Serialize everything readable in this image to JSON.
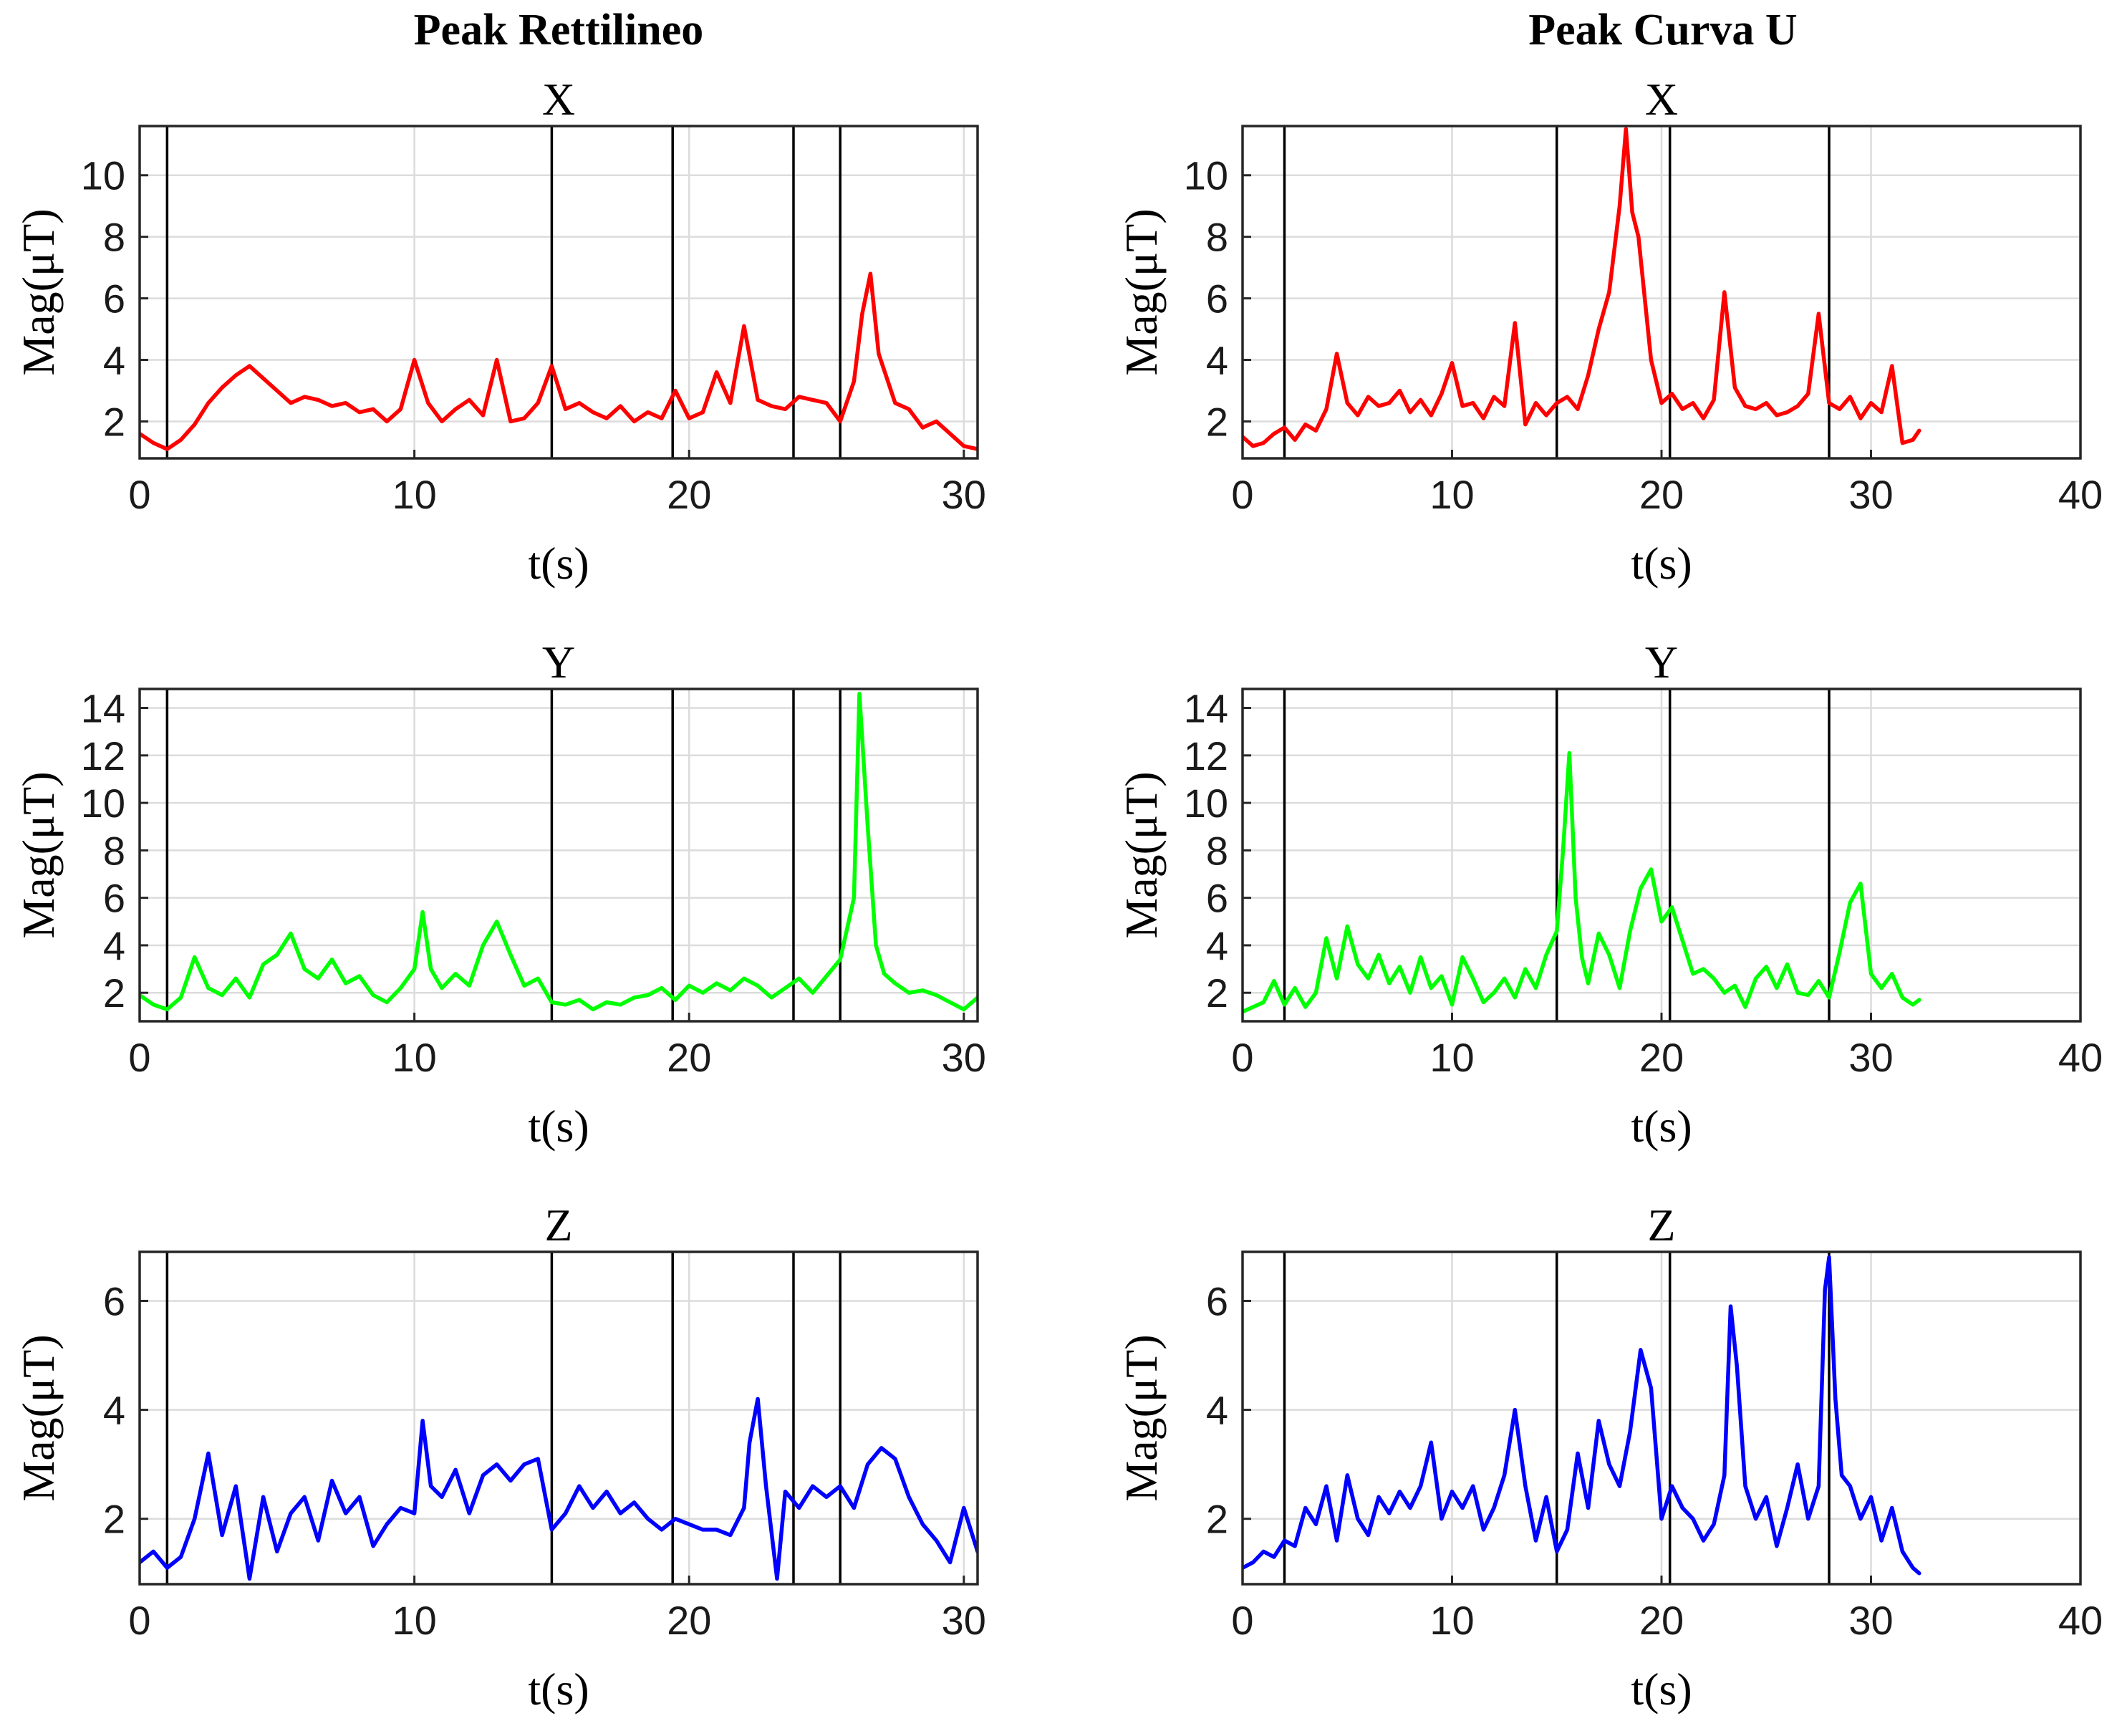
{
  "figure": {
    "column_titles": [
      "Peak Rettilineo",
      "Peak Curva U"
    ]
  },
  "chart_data": [
    {
      "id": "left-x",
      "type": "line",
      "column_title": "Peak Rettilineo",
      "title": "X",
      "xlabel": "t(s)",
      "ylabel": "Mag(μT)",
      "xlim": [
        0,
        30.5
      ],
      "ylim": [
        0.8,
        11.6
      ],
      "xticks": [
        0,
        10,
        20,
        30
      ],
      "yticks": [
        2,
        4,
        6,
        8,
        10
      ],
      "grid": true,
      "color": "#ff0000",
      "event_lines": [
        1,
        15,
        19.4,
        23.8,
        25.5
      ],
      "series": [
        {
          "x": [
            0,
            0.5,
            1,
            1.5,
            2,
            2.5,
            3,
            3.5,
            4,
            4.5,
            5,
            5.5,
            6,
            6.5,
            7,
            7.5,
            8,
            8.5,
            9,
            9.5,
            10,
            10.5,
            11,
            11.5,
            12,
            12.5,
            13,
            13.5,
            14,
            14.5,
            15,
            15.5,
            16,
            16.5,
            17,
            17.5,
            18,
            18.5,
            19,
            19.5,
            20,
            20.5,
            21,
            21.5,
            22,
            22.5,
            23,
            23.5,
            24,
            24.5,
            25,
            25.5,
            26,
            26.3,
            26.6,
            26.9,
            27.2,
            27.5,
            28,
            28.5,
            29,
            29.5,
            30,
            30.5
          ],
          "y": [
            1.6,
            1.3,
            1.1,
            1.4,
            1.9,
            2.6,
            3.1,
            3.5,
            3.8,
            3.4,
            3.0,
            2.6,
            2.8,
            2.7,
            2.5,
            2.6,
            2.3,
            2.4,
            2.0,
            2.4,
            4.0,
            2.6,
            2.0,
            2.4,
            2.7,
            2.2,
            4.0,
            2.0,
            2.1,
            2.6,
            3.8,
            2.4,
            2.6,
            2.3,
            2.1,
            2.5,
            2.0,
            2.3,
            2.1,
            3.0,
            2.1,
            2.3,
            3.6,
            2.6,
            5.1,
            2.7,
            2.5,
            2.4,
            2.8,
            2.7,
            2.6,
            2.0,
            3.3,
            5.5,
            6.8,
            4.2,
            3.4,
            2.6,
            2.4,
            1.8,
            2.0,
            1.6,
            1.2,
            1.1
          ]
        }
      ]
    },
    {
      "id": "right-x",
      "type": "line",
      "column_title": "Peak Curva U",
      "title": "X",
      "xlabel": "t(s)",
      "ylabel": "Mag(μT)",
      "xlim": [
        0,
        40
      ],
      "ylim": [
        0.8,
        11.6
      ],
      "xticks": [
        0,
        10,
        20,
        30,
        40
      ],
      "yticks": [
        2,
        4,
        6,
        8,
        10
      ],
      "grid": true,
      "color": "#ff0000",
      "event_lines": [
        2,
        15,
        20.4,
        28
      ],
      "series": [
        {
          "x": [
            0,
            0.5,
            1,
            1.5,
            2,
            2.5,
            3,
            3.5,
            4,
            4.5,
            5,
            5.5,
            6,
            6.5,
            7,
            7.5,
            8,
            8.5,
            9,
            9.5,
            10,
            10.5,
            11,
            11.5,
            12,
            12.5,
            13,
            13.5,
            14,
            14.5,
            15,
            15.5,
            16,
            16.5,
            17,
            17.5,
            18,
            18.3,
            18.6,
            18.9,
            19.2,
            19.5,
            20,
            20.5,
            21,
            21.5,
            22,
            22.5,
            23,
            23.5,
            24,
            24.5,
            25,
            25.5,
            26,
            26.5,
            27,
            27.5,
            28,
            28.5,
            29,
            29.5,
            30,
            30.5,
            31,
            31.5,
            32,
            32.3
          ],
          "y": [
            1.5,
            1.2,
            1.3,
            1.6,
            1.8,
            1.4,
            1.9,
            1.7,
            2.4,
            4.2,
            2.6,
            2.2,
            2.8,
            2.5,
            2.6,
            3.0,
            2.3,
            2.7,
            2.2,
            2.9,
            3.9,
            2.5,
            2.6,
            2.1,
            2.8,
            2.5,
            5.2,
            1.9,
            2.6,
            2.2,
            2.6,
            2.8,
            2.4,
            3.5,
            5.0,
            6.2,
            9.0,
            11.5,
            8.8,
            8.0,
            6.0,
            4.0,
            2.6,
            2.9,
            2.4,
            2.6,
            2.1,
            2.7,
            6.2,
            3.1,
            2.5,
            2.4,
            2.6,
            2.2,
            2.3,
            2.5,
            2.9,
            5.5,
            2.6,
            2.4,
            2.8,
            2.1,
            2.6,
            2.3,
            3.8,
            1.3,
            1.4,
            1.7
          ]
        }
      ]
    },
    {
      "id": "left-y",
      "type": "line",
      "column_title": "Peak Rettilineo",
      "title": "Y",
      "xlabel": "t(s)",
      "ylabel": "Mag(μT)",
      "xlim": [
        0,
        30.5
      ],
      "ylim": [
        0.8,
        14.8
      ],
      "xticks": [
        0,
        10,
        20,
        30
      ],
      "yticks": [
        2,
        4,
        6,
        8,
        10,
        12,
        14
      ],
      "grid": true,
      "color": "#00ff00",
      "event_lines": [
        1,
        15,
        19.4,
        23.8,
        25.5
      ],
      "series": [
        {
          "x": [
            0,
            0.5,
            1,
            1.5,
            2,
            2.5,
            3,
            3.5,
            4,
            4.5,
            5,
            5.5,
            6,
            6.5,
            7,
            7.5,
            8,
            8.5,
            9,
            9.5,
            10,
            10.3,
            10.6,
            11,
            11.5,
            12,
            12.5,
            13,
            13.5,
            14,
            14.5,
            15,
            15.5,
            16,
            16.5,
            17,
            17.5,
            18,
            18.5,
            19,
            19.5,
            20,
            20.5,
            21,
            21.5,
            22,
            22.5,
            23,
            23.5,
            24,
            24.5,
            25,
            25.5,
            26,
            26.2,
            26.5,
            26.8,
            27.1,
            27.5,
            28,
            28.5,
            29,
            29.5,
            30,
            30.5
          ],
          "y": [
            1.9,
            1.5,
            1.3,
            1.8,
            3.5,
            2.2,
            1.9,
            2.6,
            1.8,
            3.2,
            3.6,
            4.5,
            3.0,
            2.6,
            3.4,
            2.4,
            2.7,
            1.9,
            1.6,
            2.2,
            3.0,
            5.4,
            3.0,
            2.2,
            2.8,
            2.3,
            4.0,
            5.0,
            3.6,
            2.3,
            2.6,
            1.6,
            1.5,
            1.7,
            1.3,
            1.6,
            1.5,
            1.8,
            1.9,
            2.2,
            1.7,
            2.3,
            2.0,
            2.4,
            2.1,
            2.6,
            2.3,
            1.8,
            2.2,
            2.6,
            2.0,
            2.7,
            3.4,
            6.0,
            14.6,
            9.0,
            4.0,
            2.8,
            2.4,
            2.0,
            2.1,
            1.9,
            1.6,
            1.3,
            1.8
          ]
        }
      ]
    },
    {
      "id": "right-y",
      "type": "line",
      "column_title": "Peak Curva U",
      "title": "Y",
      "xlabel": "t(s)",
      "ylabel": "Mag(μT)",
      "xlim": [
        0,
        40
      ],
      "ylim": [
        0.8,
        14.8
      ],
      "xticks": [
        0,
        10,
        20,
        30,
        40
      ],
      "yticks": [
        2,
        4,
        6,
        8,
        10,
        12,
        14
      ],
      "grid": true,
      "color": "#00ff00",
      "event_lines": [
        2,
        15,
        20.4,
        28
      ],
      "series": [
        {
          "x": [
            0,
            0.5,
            1,
            1.5,
            2,
            2.5,
            3,
            3.5,
            4,
            4.5,
            5,
            5.5,
            6,
            6.5,
            7,
            7.5,
            8,
            8.5,
            9,
            9.5,
            10,
            10.5,
            11,
            11.5,
            12,
            12.5,
            13,
            13.5,
            14,
            14.5,
            15,
            15.3,
            15.6,
            15.9,
            16.2,
            16.5,
            17,
            17.5,
            18,
            18.5,
            19,
            19.5,
            20,
            20.5,
            21,
            21.5,
            22,
            22.5,
            23,
            23.5,
            24,
            24.5,
            25,
            25.5,
            26,
            26.5,
            27,
            27.5,
            28,
            28.5,
            29,
            29.5,
            30,
            30.5,
            31,
            31.5,
            32,
            32.3
          ],
          "y": [
            1.2,
            1.4,
            1.6,
            2.5,
            1.5,
            2.2,
            1.4,
            2.0,
            4.3,
            2.6,
            4.8,
            3.2,
            2.6,
            3.6,
            2.4,
            3.1,
            2.0,
            3.5,
            2.2,
            2.7,
            1.5,
            3.5,
            2.6,
            1.6,
            2.0,
            2.6,
            1.8,
            3.0,
            2.2,
            3.6,
            4.6,
            8.0,
            12.1,
            6.0,
            3.5,
            2.4,
            4.5,
            3.6,
            2.2,
            4.6,
            6.4,
            7.2,
            5.0,
            5.6,
            4.2,
            2.8,
            3.0,
            2.6,
            2.0,
            2.3,
            1.4,
            2.6,
            3.1,
            2.2,
            3.2,
            2.0,
            1.9,
            2.5,
            1.8,
            3.7,
            5.8,
            6.6,
            2.8,
            2.2,
            2.8,
            1.8,
            1.5,
            1.7
          ]
        }
      ]
    },
    {
      "id": "left-z",
      "type": "line",
      "column_title": "Peak Rettilineo",
      "title": "Z",
      "xlabel": "t(s)",
      "ylabel": "Mag(μT)",
      "xlim": [
        0,
        30.5
      ],
      "ylim": [
        0.8,
        6.9
      ],
      "xticks": [
        0,
        10,
        20,
        30
      ],
      "yticks": [
        2,
        4,
        6
      ],
      "grid": true,
      "color": "#0000ff",
      "event_lines": [
        1,
        15,
        19.4,
        23.8,
        25.5
      ],
      "series": [
        {
          "x": [
            0,
            0.5,
            1,
            1.5,
            2,
            2.5,
            3,
            3.5,
            4,
            4.5,
            5,
            5.5,
            6,
            6.5,
            7,
            7.5,
            8,
            8.5,
            9,
            9.5,
            10,
            10.3,
            10.6,
            11,
            11.5,
            12,
            12.5,
            13,
            13.5,
            14,
            14.5,
            15,
            15.5,
            16,
            16.5,
            17,
            17.5,
            18,
            18.5,
            19,
            19.5,
            20,
            20.5,
            21,
            21.5,
            22,
            22.2,
            22.5,
            22.8,
            23.2,
            23.5,
            24,
            24.5,
            25,
            25.5,
            26,
            26.5,
            27,
            27.5,
            28,
            28.5,
            29,
            29.5,
            30,
            30.5
          ],
          "y": [
            1.2,
            1.4,
            1.1,
            1.3,
            2.0,
            3.2,
            1.7,
            2.6,
            0.9,
            2.4,
            1.4,
            2.1,
            2.4,
            1.6,
            2.7,
            2.1,
            2.4,
            1.5,
            1.9,
            2.2,
            2.1,
            3.8,
            2.6,
            2.4,
            2.9,
            2.1,
            2.8,
            3.0,
            2.7,
            3.0,
            3.1,
            1.8,
            2.1,
            2.6,
            2.2,
            2.5,
            2.1,
            2.3,
            2.0,
            1.8,
            2.0,
            1.9,
            1.8,
            1.8,
            1.7,
            2.2,
            3.4,
            4.2,
            2.6,
            0.9,
            2.5,
            2.2,
            2.6,
            2.4,
            2.6,
            2.2,
            3.0,
            3.3,
            3.1,
            2.4,
            1.9,
            1.6,
            1.2,
            2.2,
            1.4
          ]
        }
      ]
    },
    {
      "id": "right-z",
      "type": "line",
      "column_title": "Peak Curva U",
      "title": "Z",
      "xlabel": "t(s)",
      "ylabel": "Mag(μT)",
      "xlim": [
        0,
        40
      ],
      "ylim": [
        0.8,
        6.9
      ],
      "xticks": [
        0,
        10,
        20,
        30,
        40
      ],
      "yticks": [
        2,
        4,
        6
      ],
      "grid": true,
      "color": "#0000ff",
      "event_lines": [
        2,
        15,
        20.4,
        28
      ],
      "series": [
        {
          "x": [
            0,
            0.5,
            1,
            1.5,
            2,
            2.5,
            3,
            3.5,
            4,
            4.5,
            5,
            5.5,
            6,
            6.5,
            7,
            7.5,
            8,
            8.5,
            9,
            9.5,
            10,
            10.5,
            11,
            11.5,
            12,
            12.5,
            13,
            13.5,
            14,
            14.5,
            15,
            15.5,
            16,
            16.5,
            17,
            17.5,
            18,
            18.5,
            19,
            19.5,
            20,
            20.5,
            21,
            21.5,
            22,
            22.5,
            23,
            23.3,
            23.6,
            24,
            24.5,
            25,
            25.5,
            26,
            26.5,
            27,
            27.5,
            27.8,
            28,
            28.3,
            28.6,
            29,
            29.5,
            30,
            30.5,
            31,
            31.5,
            32,
            32.3
          ],
          "y": [
            1.1,
            1.2,
            1.4,
            1.3,
            1.6,
            1.5,
            2.2,
            1.9,
            2.6,
            1.6,
            2.8,
            2.0,
            1.7,
            2.4,
            2.1,
            2.5,
            2.2,
            2.6,
            3.4,
            2.0,
            2.5,
            2.2,
            2.6,
            1.8,
            2.2,
            2.8,
            4.0,
            2.6,
            1.6,
            2.4,
            1.4,
            1.8,
            3.2,
            2.2,
            3.8,
            3.0,
            2.6,
            3.6,
            5.1,
            4.4,
            2.0,
            2.6,
            2.2,
            2.0,
            1.6,
            1.9,
            2.8,
            5.9,
            4.8,
            2.6,
            2.0,
            2.4,
            1.5,
            2.2,
            3.0,
            2.0,
            2.6,
            6.2,
            6.8,
            4.2,
            2.8,
            2.6,
            2.0,
            2.4,
            1.6,
            2.2,
            1.4,
            1.1,
            1.0
          ]
        }
      ]
    }
  ]
}
